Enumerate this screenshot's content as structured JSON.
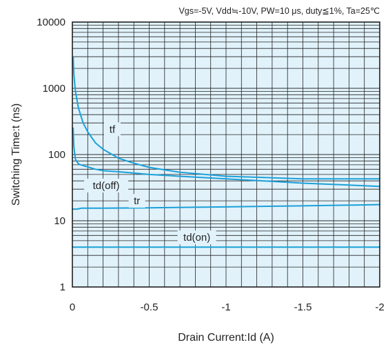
{
  "chart_data": {
    "type": "line",
    "annotation": "Vgs=-5V, Vdd≒-10V, PW=10 μs, duty≦1%, Ta=25℃",
    "xlabel": "Drain Current:Id  (A)",
    "ylabel": "Switching Time:t  (ns)",
    "x_scale": "linear",
    "y_scale": "log",
    "xlim": [
      0,
      -2
    ],
    "ylim": [
      1,
      10000
    ],
    "x_ticks": [
      {
        "value": 0,
        "label": "0"
      },
      {
        "value": -0.5,
        "label": "-0.5"
      },
      {
        "value": -1,
        "label": "-1"
      },
      {
        "value": -1.5,
        "label": "-1.5"
      },
      {
        "value": -2,
        "label": "-2"
      }
    ],
    "y_ticks": [
      {
        "value": 1,
        "label": "1"
      },
      {
        "value": 10,
        "label": "10"
      },
      {
        "value": 100,
        "label": "100"
      },
      {
        "value": 1000,
        "label": "1000"
      },
      {
        "value": 10000,
        "label": "10000"
      }
    ],
    "grid": true,
    "plot_background": "#e1f2fb",
    "line_color": "#1aa0d8",
    "series": [
      {
        "name": "tf",
        "x": [
          -0.005,
          -0.01,
          -0.02,
          -0.04,
          -0.07,
          -0.1,
          -0.15,
          -0.2,
          -0.3,
          -0.4,
          -0.5,
          -0.7,
          -1.0,
          -1.5,
          -2.0
        ],
        "y": [
          3000,
          1600,
          900,
          500,
          300,
          220,
          150,
          120,
          88,
          74,
          64,
          54,
          47,
          43,
          43
        ]
      },
      {
        "name": "td(off)",
        "x": [
          -0.005,
          -0.01,
          -0.02,
          -0.04,
          -0.07,
          -0.1,
          -0.15,
          -0.2,
          -0.3,
          -0.5,
          -0.7,
          -1.0,
          -1.5,
          -2.0
        ],
        "y": [
          250,
          130,
          85,
          72,
          68,
          65,
          60,
          57,
          55,
          50,
          47,
          43,
          37,
          33
        ]
      },
      {
        "name": "tr",
        "x": [
          0,
          -0.03,
          -0.06,
          -0.1,
          -0.2,
          -0.5,
          -1.0,
          -1.5,
          -2.0
        ],
        "y": [
          15,
          15,
          15.5,
          15.5,
          15.5,
          15.7,
          16.2,
          16.8,
          17.5
        ]
      },
      {
        "name": "td(on)",
        "x": [
          0,
          -2.0
        ],
        "y": [
          4,
          4
        ]
      }
    ],
    "series_labels": [
      {
        "series": "tf",
        "text": "tf",
        "x": -0.26,
        "y": 240
      },
      {
        "series": "td(off)",
        "text": "td(off)",
        "x": -0.22,
        "y": 34
      },
      {
        "series": "tr",
        "text": "tr",
        "x": -0.42,
        "y": 20
      },
      {
        "series": "td(on)",
        "text": "td(on)",
        "x": -0.81,
        "y": 5.6
      }
    ]
  }
}
